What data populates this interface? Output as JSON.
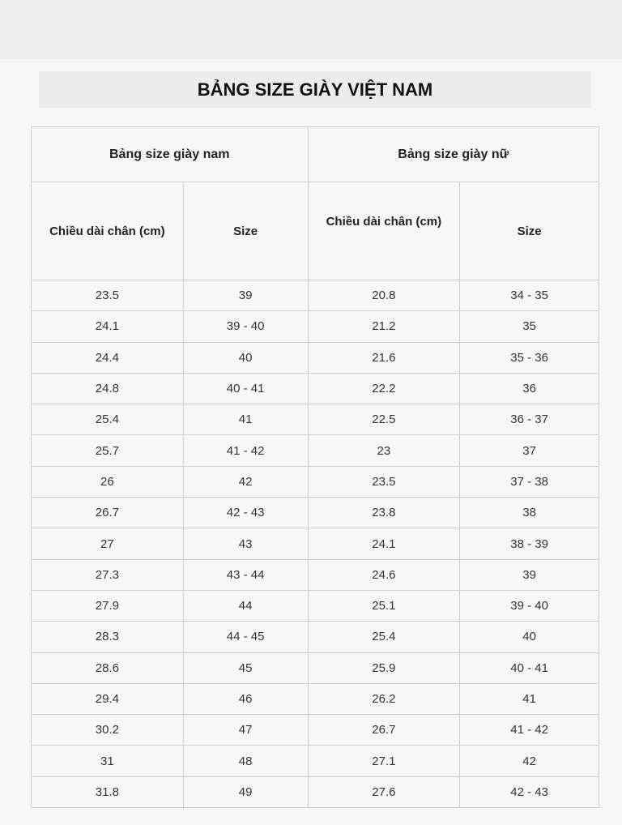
{
  "title": "BẢNG SIZE GIÀY VIỆT NAM",
  "groups": {
    "men": "Bảng size giày nam",
    "women": "Bảng size giày nữ"
  },
  "columns": {
    "length": "Chiều dài chân (cm)",
    "size": "Size"
  },
  "rows": [
    [
      "23.5",
      "39",
      "20.8",
      "34 - 35"
    ],
    [
      "24.1",
      "39 - 40",
      "21.2",
      "35"
    ],
    [
      "24.4",
      "40",
      "21.6",
      "35 - 36"
    ],
    [
      "24.8",
      "40 - 41",
      "22.2",
      "36"
    ],
    [
      "25.4",
      "41",
      "22.5",
      "36 - 37"
    ],
    [
      "25.7",
      "41 - 42",
      "23",
      "37"
    ],
    [
      "26",
      "42",
      "23.5",
      "37 - 38"
    ],
    [
      "26.7",
      "42 - 43",
      "23.8",
      "38"
    ],
    [
      "27",
      "43",
      "24.1",
      "38 - 39"
    ],
    [
      "27.3",
      "43 - 44",
      "24.6",
      "39"
    ],
    [
      "27.9",
      "44",
      "25.1",
      "39 - 40"
    ],
    [
      "28.3",
      "44 - 45",
      "25.4",
      "40"
    ],
    [
      "28.6",
      "45",
      "25.9",
      "40 - 41"
    ],
    [
      "29.4",
      "46",
      "26.2",
      "41"
    ],
    [
      "30.2",
      "47",
      "26.7",
      "41 - 42"
    ],
    [
      "31",
      "48",
      "27.1",
      "42"
    ],
    [
      "31.8",
      "49",
      "27.6",
      "42 - 43"
    ]
  ]
}
